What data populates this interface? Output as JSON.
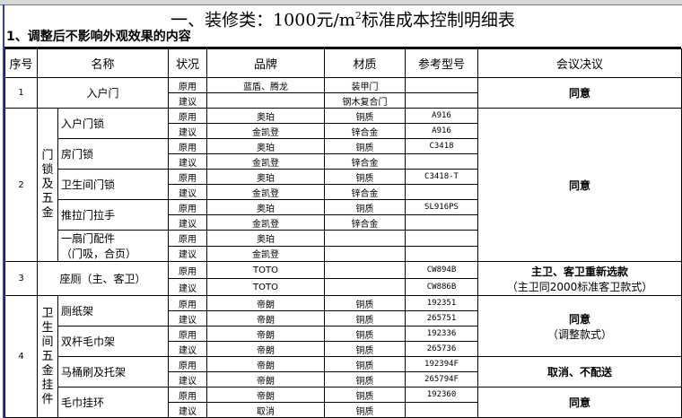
{
  "title": {
    "prefix": "一、装修类：1000元/m",
    "sup": "2",
    "suffix": "标准成本控制明细表"
  },
  "subtitle": "1、调整后不影响外观效果的内容",
  "headers": [
    "序号",
    "名称",
    "状况",
    "品牌",
    "材质",
    "参考型号",
    "会议决议"
  ],
  "groups": [
    {
      "no": "1",
      "name": "入户门",
      "decision": "同意",
      "rows": [
        [
          "原用",
          "蓝盾、腾龙",
          "装甲门",
          ""
        ],
        [
          "建议",
          "",
          "钢木复合门",
          ""
        ]
      ]
    },
    {
      "no": "2",
      "category": "门锁及五金",
      "decision": "同意",
      "items": [
        {
          "name": "入户门锁",
          "rows": [
            [
              "原用",
              "奥珀",
              "铜质",
              "A916"
            ],
            [
              "建议",
              "金凯登",
              "锌合金",
              "A916"
            ]
          ]
        },
        {
          "name": "房门锁",
          "rows": [
            [
              "原用",
              "奥珀",
              "铜质",
              "C3418"
            ],
            [
              "建议",
              "金凯登",
              "锌合金",
              ""
            ]
          ]
        },
        {
          "name": "卫生间门锁",
          "rows": [
            [
              "原用",
              "奥珀",
              "铜质",
              "C3418-T"
            ],
            [
              "建议",
              "金凯登",
              "锌合金",
              ""
            ]
          ]
        },
        {
          "name": "推拉门拉手",
          "rows": [
            [
              "原用",
              "奥珀",
              "铜质",
              "SL916PS"
            ],
            [
              "建议",
              "金凯登",
              "锌合金",
              ""
            ]
          ]
        },
        {
          "name": "一扇门配件",
          "name2": "（门吸，合页）",
          "rows": [
            [
              "原用",
              "奥珀",
              "",
              ""
            ],
            [
              "建议",
              "金凯登",
              "",
              ""
            ]
          ]
        }
      ]
    },
    {
      "no": "3",
      "name": "座厕（主、客卫）",
      "decision": "主卫、客卫重新选款",
      "decision_note": "（主卫同2000标准客卫款式）",
      "rows": [
        [
          "原用",
          "TOTO",
          "",
          "CW894B"
        ],
        [
          "建议",
          "TOTO",
          "",
          "CW886B"
        ]
      ]
    },
    {
      "no": "4",
      "category": "卫生间五金挂件",
      "items": [
        {
          "name": "厕纸架",
          "rows": [
            [
              "原用",
              "帝朗",
              "铜质",
              "192351"
            ],
            [
              "建议",
              "帝朗",
              "铜质",
              "265751"
            ]
          ]
        },
        {
          "name": "双杆毛巾架",
          "rows": [
            [
              "原用",
              "帝朗",
              "铜质",
              "192336"
            ],
            [
              "建议",
              "帝朗",
              "铜质",
              "265736"
            ]
          ]
        },
        {
          "name": "马桶刷及托架",
          "rows": [
            [
              "原用",
              "帝朗",
              "铜质",
              "192394F"
            ],
            [
              "建议",
              "帝朗",
              "铜质",
              "265794F"
            ]
          ]
        },
        {
          "name": "毛巾挂环",
          "rows": [
            [
              "原用",
              "帝朗",
              "铜质",
              "192360"
            ],
            [
              "建议",
              "取消",
              "铜质",
              ""
            ]
          ]
        }
      ],
      "decisions": [
        {
          "text": "同意",
          "note": "（调整款式）"
        },
        {
          "text": "取消、不配送"
        },
        {
          "text": "同意"
        }
      ]
    }
  ]
}
